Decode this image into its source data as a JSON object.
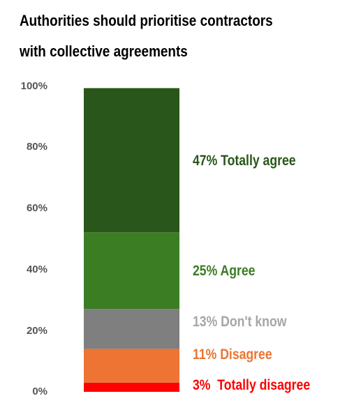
{
  "chart_data": {
    "type": "bar",
    "stacked": true,
    "title": [
      "Authorities should prioritise contractors",
      "with collective agreements"
    ],
    "ylim": [
      0,
      100
    ],
    "y_ticks": [
      "0%",
      "20%",
      "40%",
      "60%",
      "80%",
      "100%"
    ],
    "segments": [
      {
        "value": 3,
        "label": "3%  Totally disagree",
        "color": "#ff0000"
      },
      {
        "value": 11,
        "label": "11% Disagree",
        "color": "#ed7432"
      },
      {
        "value": 13,
        "label": "13% Don't know",
        "color": "#7f7f7f",
        "label_color": "#a6a6a6"
      },
      {
        "value": 25,
        "label": "25% Agree",
        "color": "#3b7d23"
      },
      {
        "value": 47,
        "label": "47% Totally agree",
        "color": "#29561a"
      }
    ]
  }
}
